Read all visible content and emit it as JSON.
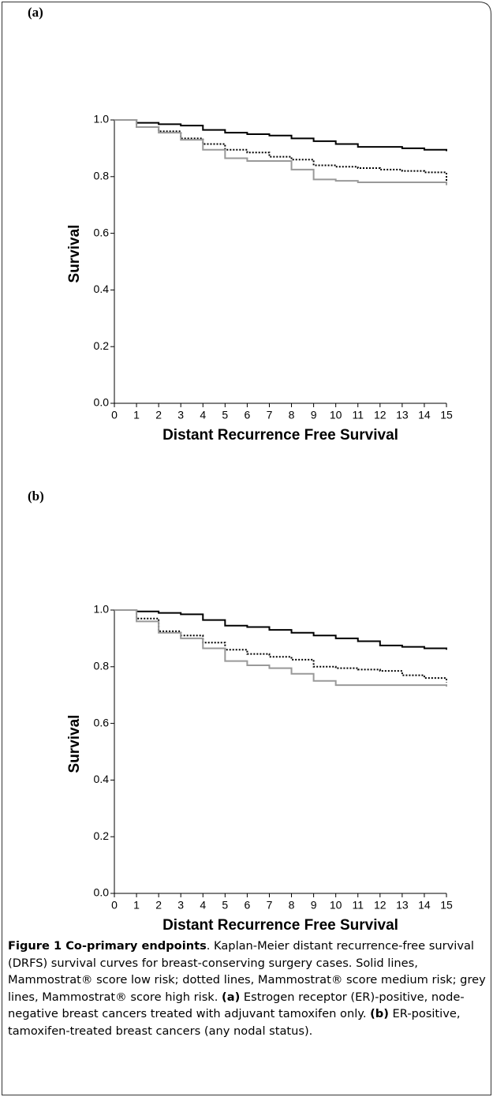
{
  "chart_data": [
    {
      "type": "step",
      "panel_label": "(a)",
      "y_label": "Survival",
      "x_label": "Distant Recurrence Free Survival",
      "x": [
        0,
        1,
        2,
        3,
        4,
        5,
        6,
        7,
        8,
        9,
        10,
        11,
        12,
        13,
        14,
        15
      ],
      "series": [
        {
          "color": "#000000",
          "dash": "solid",
          "values": [
            1,
            0.99,
            0.985,
            0.98,
            0.965,
            0.955,
            0.95,
            0.945,
            0.935,
            0.925,
            0.915,
            0.905,
            0.905,
            0.9,
            0.895,
            0.89
          ]
        },
        {
          "color": "#000000",
          "dash": "dotted",
          "values": [
            1,
            0.975,
            0.96,
            0.935,
            0.915,
            0.895,
            0.885,
            0.87,
            0.86,
            0.84,
            0.835,
            0.83,
            0.825,
            0.82,
            0.815,
            0.78
          ]
        },
        {
          "color": "#999999",
          "dash": "solid",
          "values": [
            1,
            0.975,
            0.955,
            0.93,
            0.895,
            0.865,
            0.855,
            0.855,
            0.825,
            0.79,
            0.785,
            0.78,
            0.78,
            0.78,
            0.78,
            0.77
          ]
        }
      ],
      "xlim": [
        0,
        15
      ],
      "xticks": [
        0,
        1,
        2,
        3,
        4,
        5,
        6,
        7,
        8,
        9,
        10,
        11,
        12,
        13,
        14,
        15
      ],
      "ylim": [
        0,
        1
      ],
      "yticks": [
        {
          "value": 0,
          "label": "0.0"
        },
        {
          "value": 0.2,
          "label": "0.2"
        },
        {
          "value": 0.4,
          "label": "0.4"
        },
        {
          "value": 0.6,
          "label": "0.6"
        },
        {
          "value": 0.8,
          "label": "0.8"
        },
        {
          "value": 1,
          "label": "1.0"
        }
      ]
    },
    {
      "type": "step",
      "panel_label": "(b)",
      "y_label": "Survival",
      "x_label": "Distant Recurrence Free Survival",
      "x": [
        0,
        1,
        2,
        3,
        4,
        5,
        6,
        7,
        8,
        9,
        10,
        11,
        12,
        13,
        14,
        15
      ],
      "series": [
        {
          "color": "#000000",
          "dash": "solid",
          "values": [
            1,
            0.995,
            0.99,
            0.985,
            0.965,
            0.945,
            0.94,
            0.93,
            0.92,
            0.91,
            0.9,
            0.89,
            0.875,
            0.87,
            0.865,
            0.86
          ]
        },
        {
          "color": "#000000",
          "dash": "dotted",
          "values": [
            1,
            0.97,
            0.925,
            0.91,
            0.885,
            0.86,
            0.845,
            0.835,
            0.825,
            0.8,
            0.795,
            0.79,
            0.785,
            0.77,
            0.76,
            0.745
          ]
        },
        {
          "color": "#999999",
          "dash": "solid",
          "values": [
            1,
            0.96,
            0.92,
            0.9,
            0.865,
            0.82,
            0.805,
            0.795,
            0.775,
            0.75,
            0.735,
            0.735,
            0.735,
            0.735,
            0.735,
            0.73
          ]
        }
      ],
      "xlim": [
        0,
        15
      ],
      "xticks": [
        0,
        1,
        2,
        3,
        4,
        5,
        6,
        7,
        8,
        9,
        10,
        11,
        12,
        13,
        14,
        15
      ],
      "ylim": [
        0,
        1
      ],
      "yticks": [
        {
          "value": 0,
          "label": "0.0"
        },
        {
          "value": 0.2,
          "label": "0.2"
        },
        {
          "value": 0.4,
          "label": "0.4"
        },
        {
          "value": 0.6,
          "label": "0.6"
        },
        {
          "value": 0.8,
          "label": "0.8"
        },
        {
          "value": 1,
          "label": "1.0"
        }
      ]
    }
  ],
  "caption": {
    "runs": [
      {
        "text": "Figure 1 Co-primary endpoints",
        "bold": true
      },
      {
        "text": ". Kaplan-Meier distant recurrence-free survival (DRFS) survival curves for breast-conserving surgery cases. Solid lines, Mammostrat® score low risk; dotted lines, Mammostrat® score medium risk; grey lines, Mammostrat® score high risk. ",
        "bold": false
      },
      {
        "text": "(a)",
        "bold": true
      },
      {
        "text": " Estrogen receptor (ER)-positive, node-negative breast cancers treated with adjuvant tamoxifen only. ",
        "bold": false
      },
      {
        "text": "(b)",
        "bold": true
      },
      {
        "text": " ER-positive, tamoxifen-treated breast cancers (any nodal status).",
        "bold": false
      }
    ]
  }
}
